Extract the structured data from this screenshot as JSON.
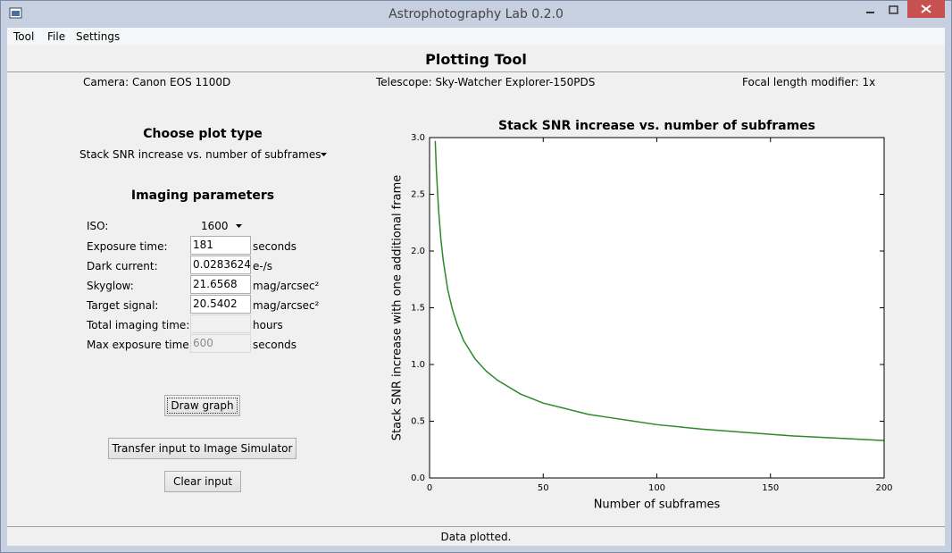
{
  "window": {
    "title": "Astrophotography Lab 0.2.0"
  },
  "menu": [
    "Tool",
    "File",
    "Settings"
  ],
  "header": {
    "title": "Plotting Tool"
  },
  "info": [
    "Camera: Canon EOS 1100D",
    "Telescope: Sky-Watcher Explorer-150PDS",
    "Focal length modifier: 1x"
  ],
  "plot_type": {
    "heading": "Choose plot type",
    "selected": "Stack SNR increase vs. number of subframes"
  },
  "parameters": {
    "heading": "Imaging parameters",
    "iso": {
      "label": "ISO:",
      "value": "1600"
    },
    "fields": [
      {
        "label": "Exposure time:",
        "value": "181",
        "unit": "seconds"
      },
      {
        "label": "Dark current:",
        "value": "0.0283624",
        "unit": "e-/s"
      },
      {
        "label": "Skyglow:",
        "value": "21.6568",
        "unit": "mag/arcsec²"
      },
      {
        "label": "Target signal:",
        "value": "20.5402",
        "unit": "mag/arcsec²"
      },
      {
        "label": "Total imaging time:",
        "unit": "hours"
      },
      {
        "label": "Max exposure time:",
        "value": "600",
        "unit": "seconds"
      }
    ]
  },
  "buttons": [
    "Draw graph",
    "Transfer input to Image Simulator",
    "Clear input"
  ],
  "status": "Data plotted.",
  "chart_data": {
    "type": "line",
    "title": "Stack SNR increase vs. number of subframes",
    "x_label": "Number of subframes",
    "y_label": "Stack SNR increase with one additional frame",
    "x": [
      2.5,
      3,
      4,
      5,
      6,
      8,
      10,
      12,
      15,
      20,
      25,
      30,
      40,
      50,
      60,
      70,
      80,
      90,
      100,
      120,
      140,
      160,
      180,
      200
    ],
    "values": [
      2.97,
      2.71,
      2.35,
      2.1,
      1.92,
      1.66,
      1.49,
      1.36,
      1.21,
      1.05,
      0.94,
      0.86,
      0.74,
      0.66,
      0.61,
      0.56,
      0.53,
      0.5,
      0.47,
      0.43,
      0.4,
      0.37,
      0.35,
      0.33
    ],
    "color": "#2a8a2a",
    "xlim": [
      0,
      200
    ],
    "xticks": [
      0,
      50,
      100,
      150,
      200
    ],
    "ylim": [
      0,
      3
    ],
    "yticks": [
      {
        "value": 0,
        "label": "0.0"
      },
      0.5,
      {
        "value": 1,
        "label": "1.0"
      },
      1.5,
      {
        "value": 2,
        "label": "2.0"
      },
      2.5,
      {
        "value": 3,
        "label": "3.0"
      }
    ],
    "grid": false
  }
}
